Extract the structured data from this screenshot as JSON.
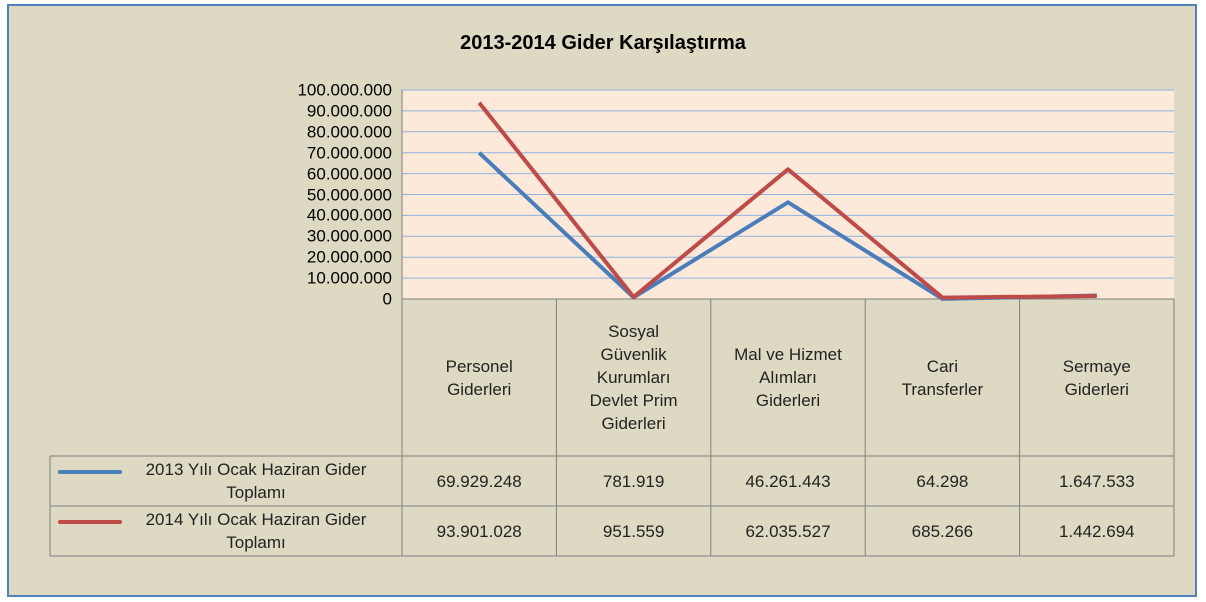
{
  "chart_data": {
    "type": "line",
    "title": "2013-2014 Gider Karşılaştırma",
    "categories": [
      "Personel Giderleri",
      "Sosyal Güvenlik Kurumları Devlet Prim Giderleri",
      "Mal ve Hizmet Alımları Giderleri",
      "Cari Transferler",
      "Sermaye Giderleri"
    ],
    "series": [
      {
        "name": "2013 Yılı Ocak Haziran Gider Toplamı",
        "color": "#4a7ebb",
        "values": [
          69929248,
          781919,
          46261443,
          64298,
          1647533
        ],
        "value_labels": [
          "69.929.248",
          "781.919",
          "46.261.443",
          "64.298",
          "1.647.533"
        ]
      },
      {
        "name": "2014 Yılı Ocak Haziran Gider Toplamı",
        "color": "#be4b48",
        "values": [
          93901028,
          951559,
          62035527,
          685266,
          1442694
        ],
        "value_labels": [
          "93.901.028",
          "951.559",
          "62.035.527",
          "685.266",
          "1.442.694"
        ]
      }
    ],
    "ylim": [
      0,
      100000000
    ],
    "yticks": [
      0,
      {
        "value": 10000000,
        "label": "10.000.000"
      },
      {
        "value": 20000000,
        "label": "20.000.000"
      },
      {
        "value": 30000000,
        "label": "30.000.000"
      },
      {
        "value": 40000000,
        "label": "40.000.000"
      },
      {
        "value": 50000000,
        "label": "50.000.000"
      },
      {
        "value": 60000000,
        "label": "60.000.000"
      },
      {
        "value": 70000000,
        "label": "70.000.000"
      },
      {
        "value": 80000000,
        "label": "80.000.000"
      },
      {
        "value": 90000000,
        "label": "90.000.000"
      },
      {
        "value": 100000000,
        "label": "100.000.000"
      }
    ],
    "grid": true
  }
}
